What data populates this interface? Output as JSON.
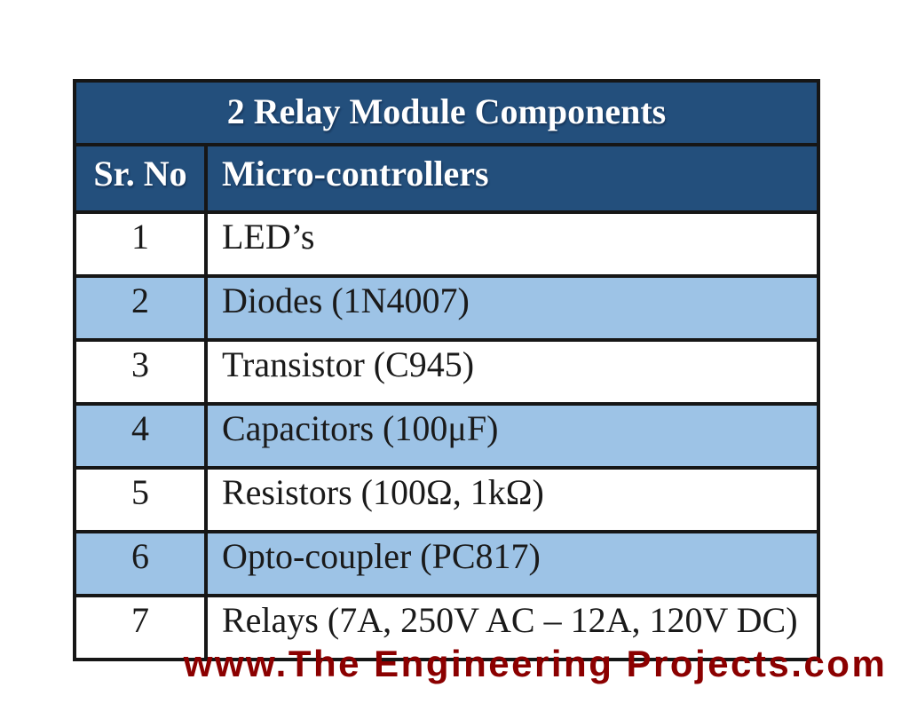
{
  "page": {
    "background": "#ffffff"
  },
  "table": {
    "title": "2 Relay Module Components",
    "columns": [
      {
        "label": "Sr. No"
      },
      {
        "label": "Micro-controllers"
      }
    ],
    "rows": [
      {
        "sr": "1",
        "component": "LED’s"
      },
      {
        "sr": "2",
        "component": "Diodes (1N4007)"
      },
      {
        "sr": "3",
        "component": "Transistor (C945)"
      },
      {
        "sr": "4",
        "component": "Capacitors (100μF)"
      },
      {
        "sr": "5",
        "component": "Resistors (100Ω, 1kΩ)"
      },
      {
        "sr": "6",
        "component": "Opto-coupler (PC817)"
      },
      {
        "sr": "7",
        "component": "Relays (7A, 250V AC – 12A, 120V DC)"
      }
    ],
    "colors": {
      "header_bg": "#234F7C",
      "header_text": "#FFFFFF",
      "row_bg": "#FFFFFF",
      "row_alt_bg": "#9DC3E6",
      "border": "#161616",
      "body_text": "#1A1A1A"
    }
  },
  "watermark": {
    "text": "www.The Engineering Projects.com",
    "color": "#8B0000"
  }
}
